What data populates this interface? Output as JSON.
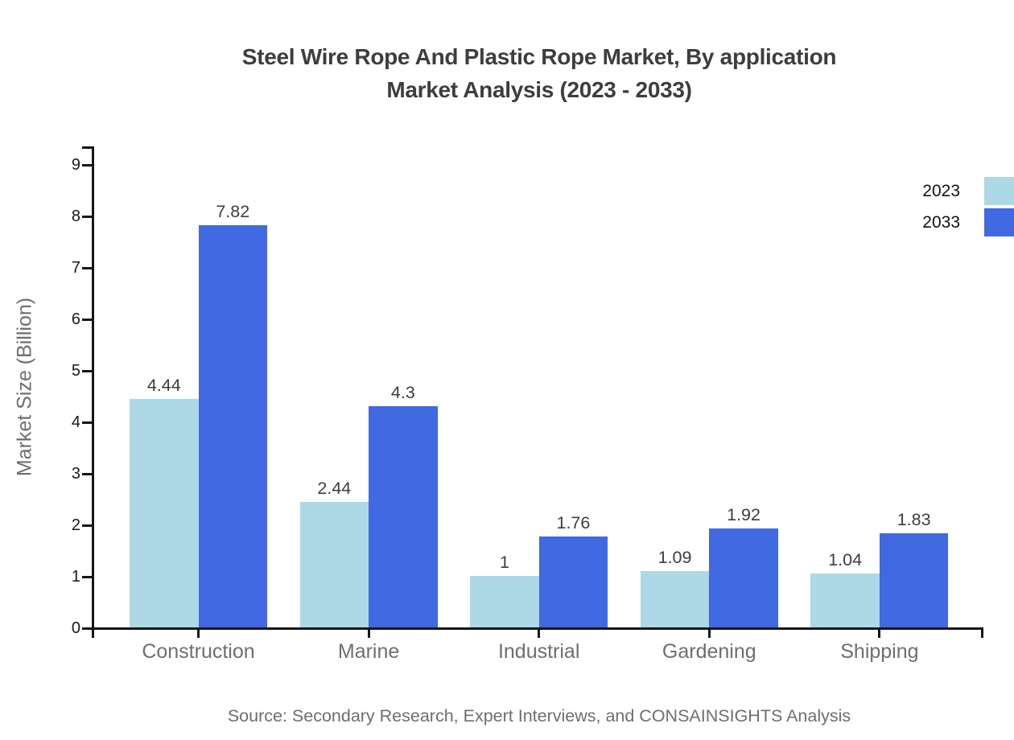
{
  "chart_data": {
    "type": "bar",
    "title_lines": [
      "Steel Wire Rope And Plastic Rope Market, By application",
      "Market Analysis (2023 - 2033)"
    ],
    "ylabel": "Market Size (Billion)",
    "xlabel": "",
    "categories": [
      "Construction",
      "Marine",
      "Industrial",
      "Gardening",
      "Shipping"
    ],
    "series": [
      {
        "name": "2023",
        "color": "#ADD8E6",
        "values": [
          4.44,
          2.44,
          1,
          1.09,
          1.04
        ]
      },
      {
        "name": "2033",
        "color": "#4169E1",
        "values": [
          7.82,
          4.3,
          1.76,
          1.92,
          1.83
        ]
      }
    ],
    "ylim": [
      0,
      9
    ],
    "yticks": [
      0,
      1,
      2,
      3,
      4,
      5,
      6,
      7,
      8,
      9
    ],
    "grid": false,
    "legend_position": "top-right",
    "value_labels_shown": true,
    "source": "Source: Secondary Research, Expert Interviews, and CONSAINSIGHTS Analysis",
    "colors": {
      "axis": "#151515",
      "title_text": "#3d3d3d",
      "muted_text": "#6e6e6e",
      "value_label_text": "#3d3d3d",
      "background": "#ffffff"
    }
  }
}
